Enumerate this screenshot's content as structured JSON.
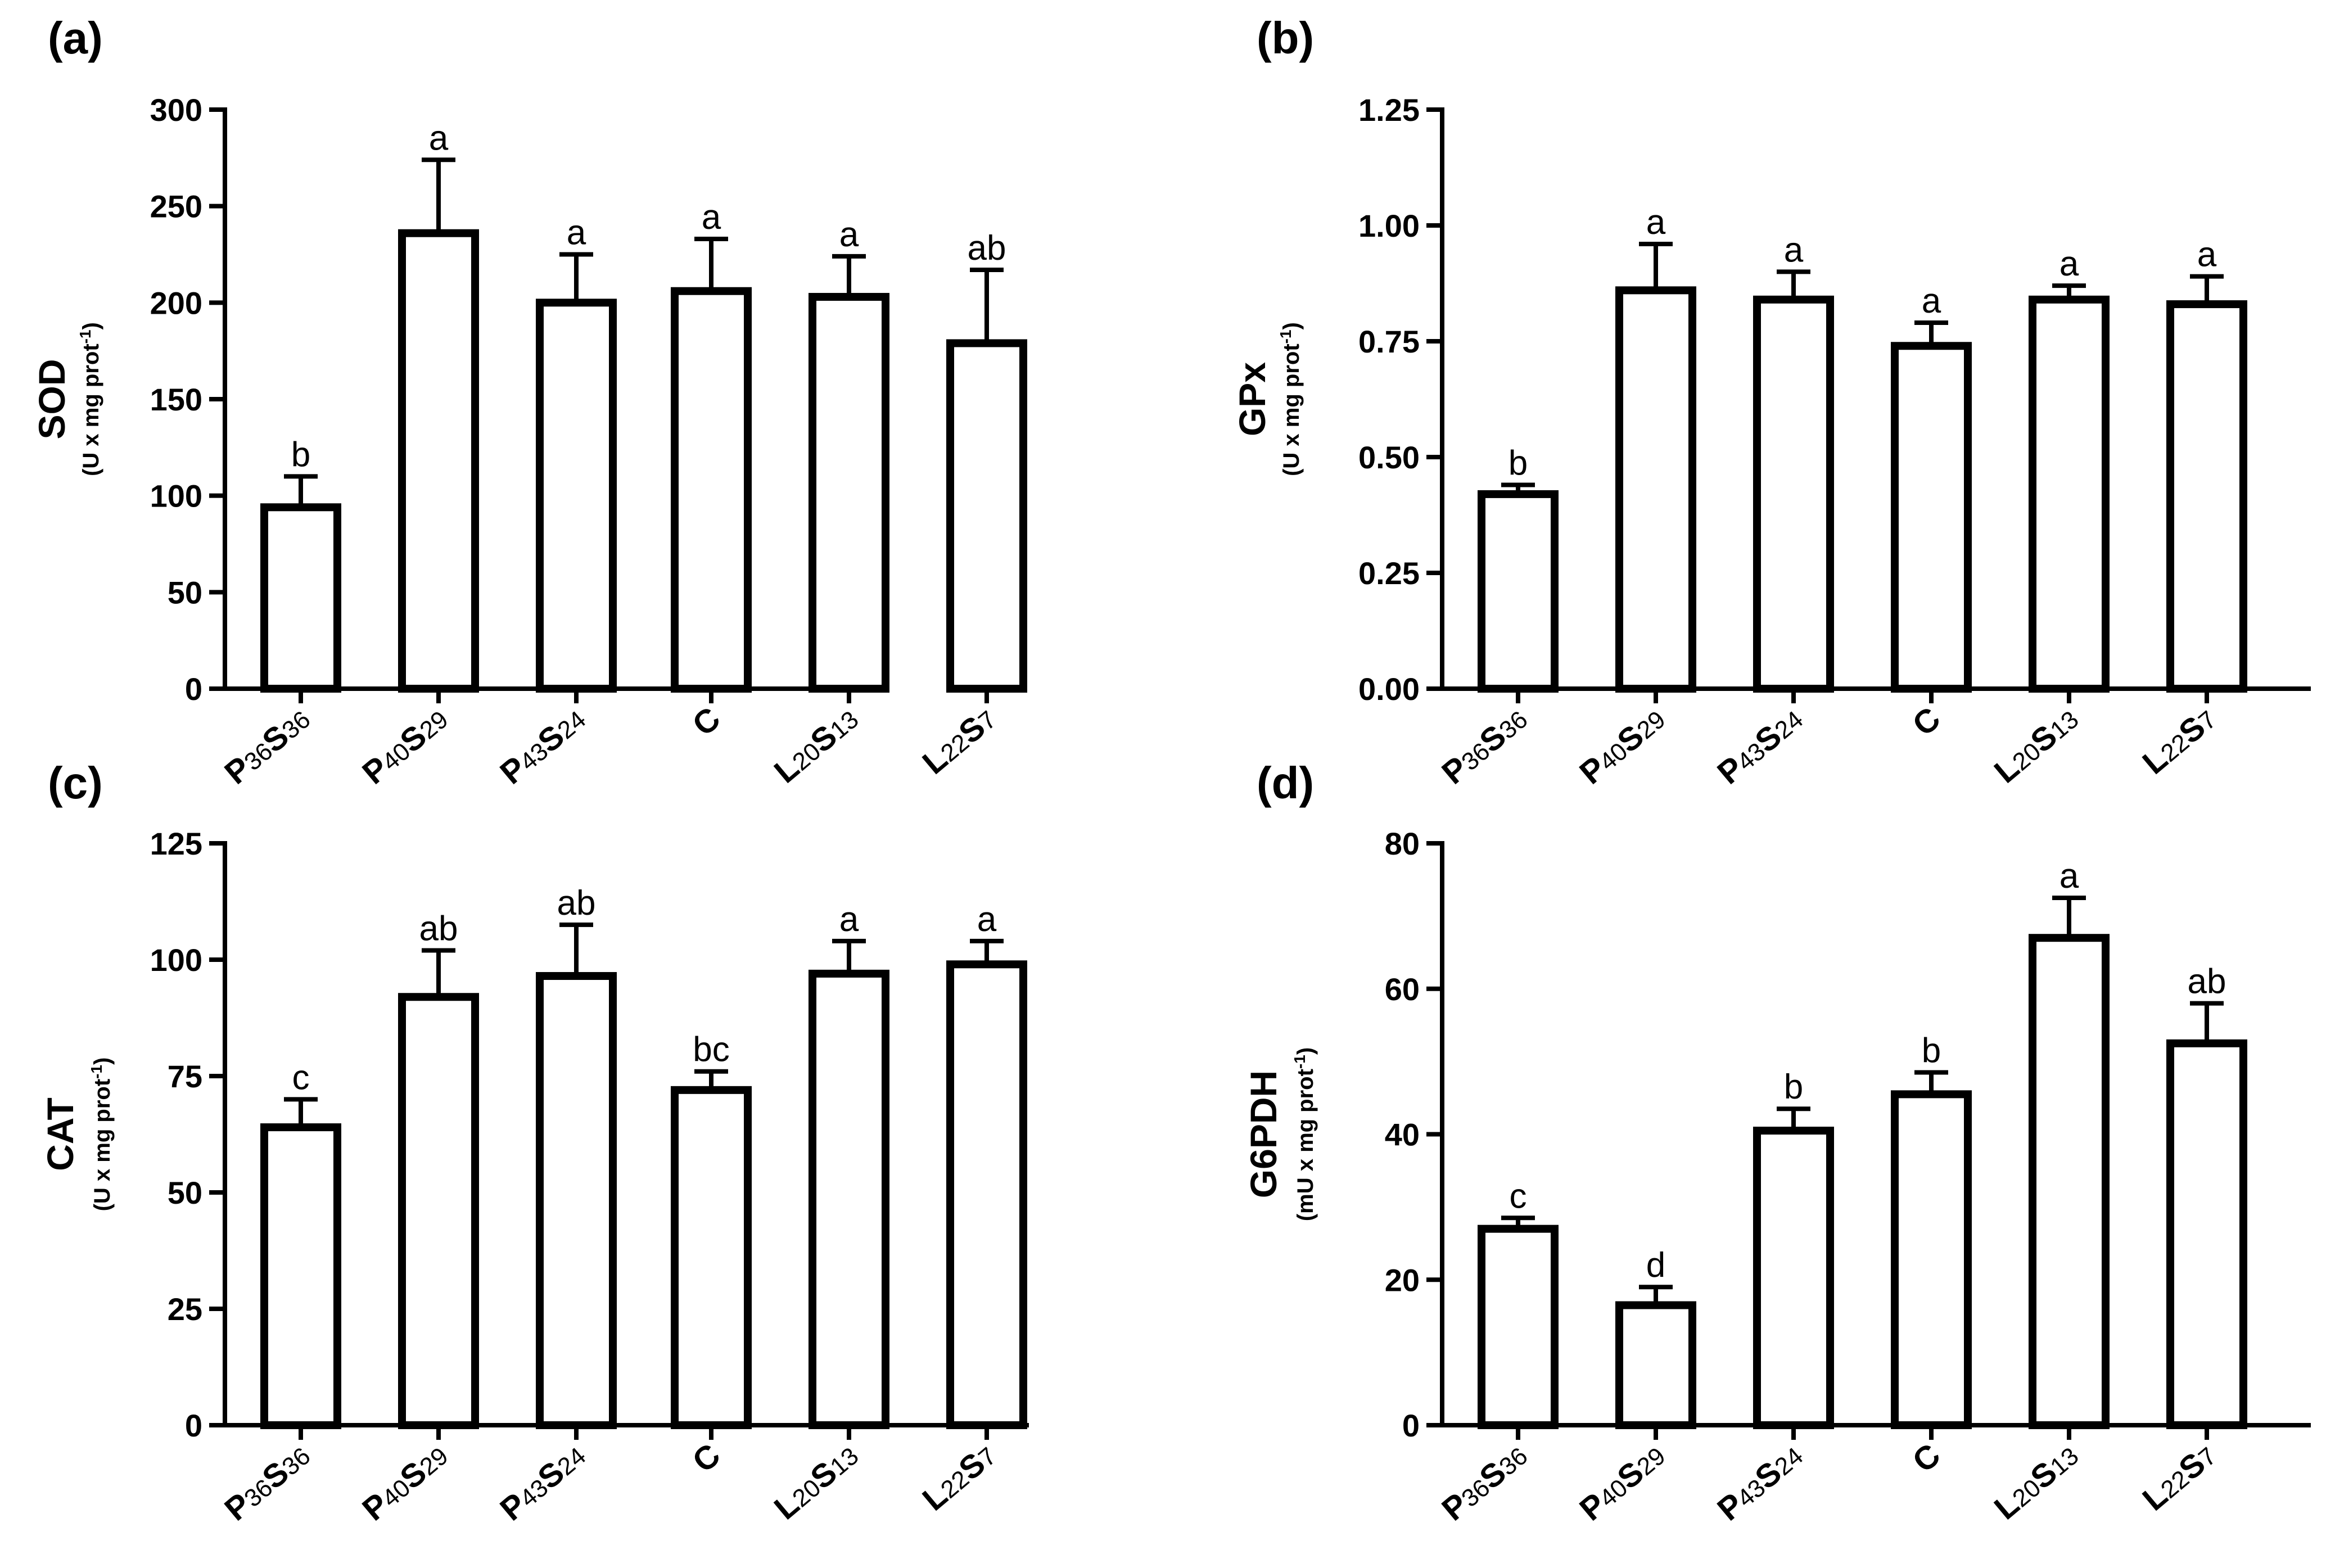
{
  "chart_data": [
    {
      "type": "bar",
      "panel": "(a)",
      "ylabel": "SOD",
      "yunit": "(U x mg prot-1)",
      "ylim": [
        0,
        300
      ],
      "yticks": [
        0,
        50,
        100,
        150,
        200,
        250,
        300
      ],
      "categories": [
        {
          "p1": "P",
          "s1": "36",
          "p2": "S",
          "s2": "36"
        },
        {
          "p1": "P",
          "s1": "40",
          "p2": "S",
          "s2": "29"
        },
        {
          "p1": "P",
          "s1": "43",
          "p2": "S",
          "s2": "24"
        },
        {
          "p1": "C",
          "s1": "",
          "p2": "",
          "s2": ""
        },
        {
          "p1": "L",
          "s1": "20",
          "p2": "S",
          "s2": "13"
        },
        {
          "p1": "L",
          "s1": "22",
          "p2": "S",
          "s2": "7"
        }
      ],
      "values": [
        94,
        236,
        200,
        206,
        203,
        179
      ],
      "errors": [
        16,
        38,
        25,
        27,
        21,
        38
      ],
      "letters": [
        "b",
        "a",
        "a",
        "a",
        "a",
        "ab"
      ]
    },
    {
      "type": "bar",
      "panel": "(b)",
      "ylabel": "GPx",
      "yunit": "(U x mg prot-1)",
      "ylim": [
        0,
        1.25
      ],
      "yticks": [
        0.0,
        0.25,
        0.5,
        0.75,
        1.0,
        1.25
      ],
      "ytick_labels": [
        "0.00",
        "0.25",
        "0.50",
        "0.75",
        "1.00",
        "1.25"
      ],
      "categories": [
        {
          "p1": "P",
          "s1": "36",
          "p2": "S",
          "s2": "36"
        },
        {
          "p1": "P",
          "s1": "40",
          "p2": "S",
          "s2": "29"
        },
        {
          "p1": "P",
          "s1": "43",
          "p2": "S",
          "s2": "24"
        },
        {
          "p1": "C",
          "s1": "",
          "p2": "",
          "s2": ""
        },
        {
          "p1": "L",
          "s1": "20",
          "p2": "S",
          "s2": "13"
        },
        {
          "p1": "L",
          "s1": "22",
          "p2": "S",
          "s2": "7"
        }
      ],
      "values": [
        0.42,
        0.86,
        0.84,
        0.74,
        0.84,
        0.83
      ],
      "errors": [
        0.02,
        0.1,
        0.06,
        0.05,
        0.03,
        0.06
      ],
      "letters": [
        "b",
        "a",
        "a",
        "a",
        "a",
        "a"
      ]
    },
    {
      "type": "bar",
      "panel": "(c)",
      "ylabel": "CAT",
      "yunit": "(U x mg prot-1)",
      "ylim": [
        0,
        125
      ],
      "yticks": [
        0,
        25,
        50,
        75,
        100,
        125
      ],
      "categories": [
        {
          "p1": "P",
          "s1": "36",
          "p2": "S",
          "s2": "36"
        },
        {
          "p1": "P",
          "s1": "40",
          "p2": "S",
          "s2": "29"
        },
        {
          "p1": "P",
          "s1": "43",
          "p2": "S",
          "s2": "24"
        },
        {
          "p1": "C",
          "s1": "",
          "p2": "",
          "s2": ""
        },
        {
          "p1": "L",
          "s1": "20",
          "p2": "S",
          "s2": "13"
        },
        {
          "p1": "L",
          "s1": "22",
          "p2": "S",
          "s2": "7"
        }
      ],
      "values": [
        64,
        92,
        96.5,
        72,
        97,
        99
      ],
      "errors": [
        6,
        10,
        11,
        4,
        7,
        5
      ],
      "letters": [
        "c",
        "ab",
        "ab",
        "bc",
        "a",
        "a"
      ]
    },
    {
      "type": "bar",
      "panel": "(d)",
      "ylabel": "G6PDH",
      "yunit": "(mU x mg prot-1)",
      "ylim": [
        0,
        80
      ],
      "yticks": [
        0,
        20,
        40,
        60,
        80
      ],
      "categories": [
        {
          "p1": "P",
          "s1": "36",
          "p2": "S",
          "s2": "36"
        },
        {
          "p1": "P",
          "s1": "40",
          "p2": "S",
          "s2": "29"
        },
        {
          "p1": "P",
          "s1": "43",
          "p2": "S",
          "s2": "24"
        },
        {
          "p1": "C",
          "s1": "",
          "p2": "",
          "s2": ""
        },
        {
          "p1": "L",
          "s1": "20",
          "p2": "S",
          "s2": "13"
        },
        {
          "p1": "L",
          "s1": "22",
          "p2": "S",
          "s2": "7"
        }
      ],
      "values": [
        27,
        16.5,
        40.5,
        45.5,
        67,
        52.5
      ],
      "errors": [
        1.5,
        2.5,
        3,
        3,
        5.5,
        5.5
      ],
      "letters": [
        "c",
        "d",
        "b",
        "b",
        "a",
        "ab"
      ]
    }
  ]
}
